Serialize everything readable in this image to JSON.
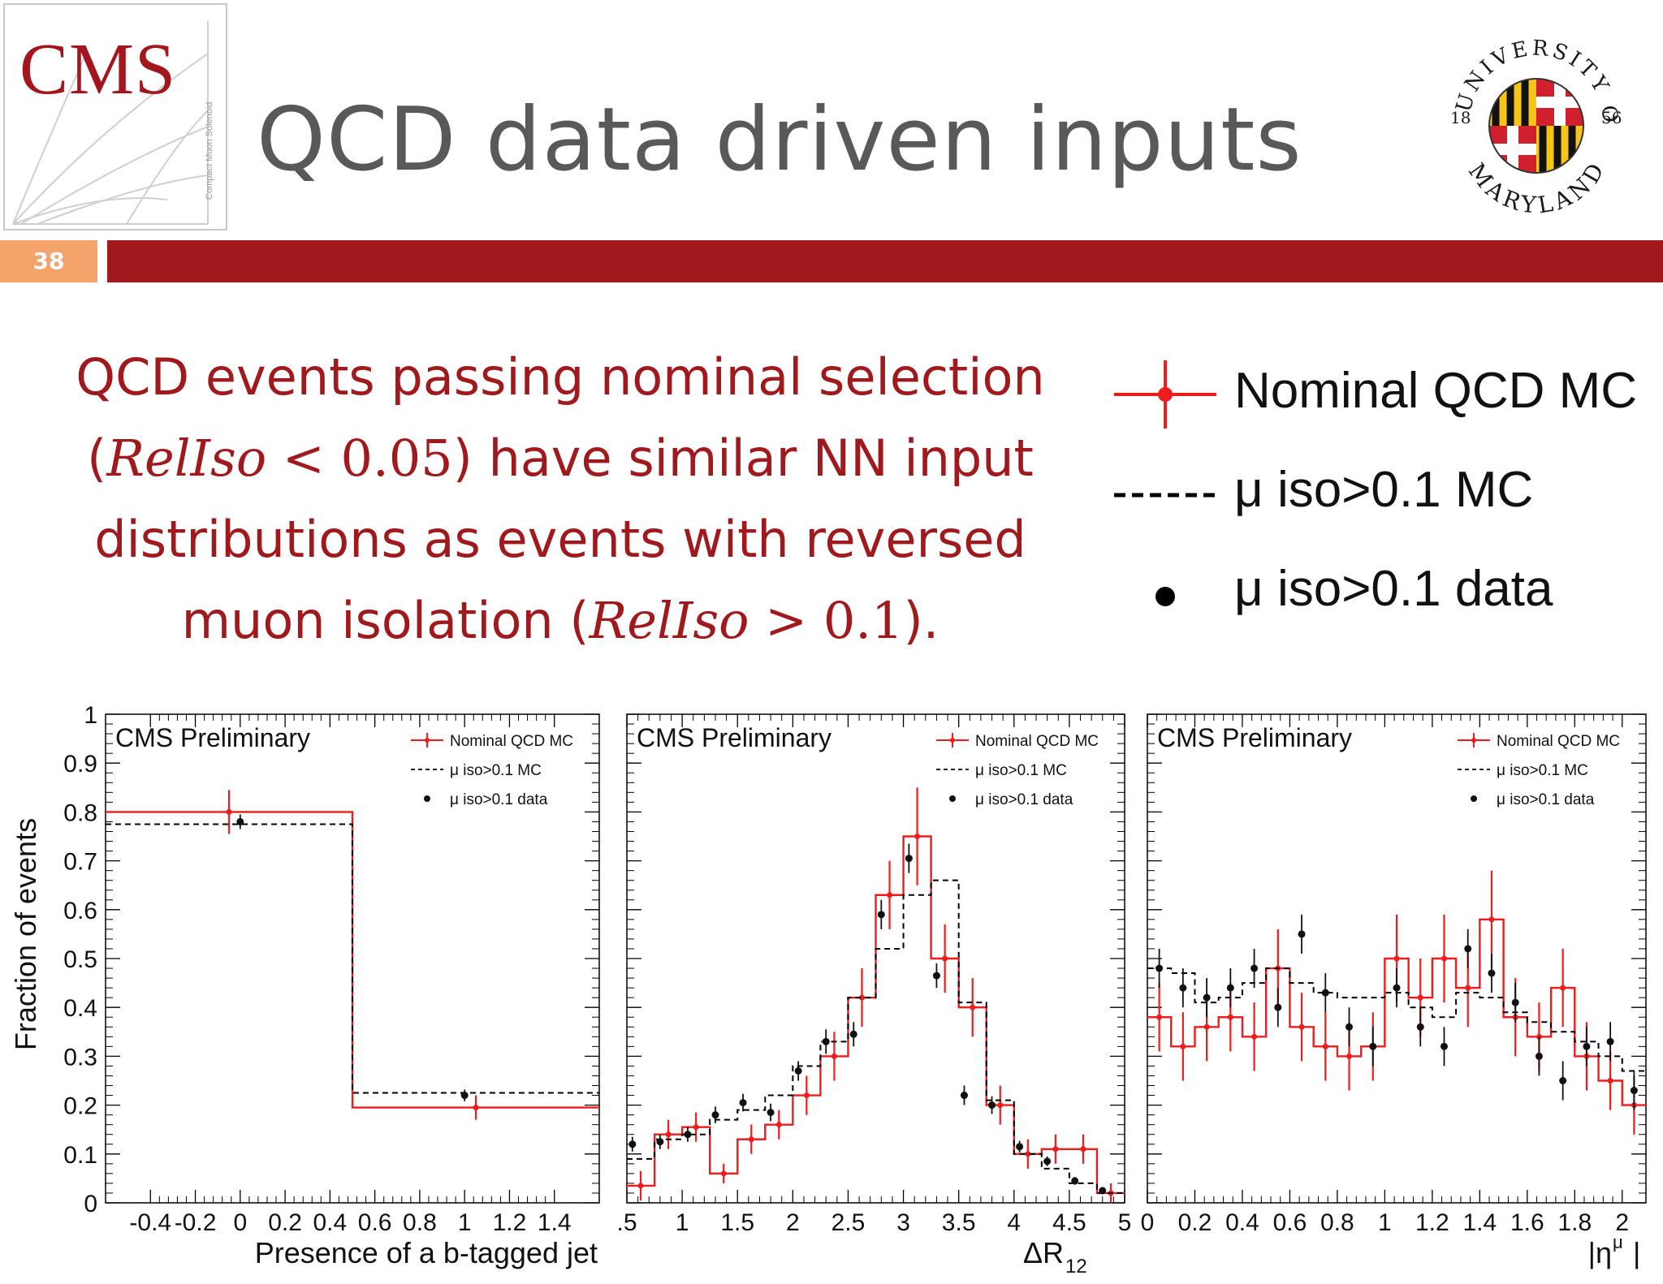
{
  "header": {
    "logo_text": "CMS",
    "logo_subtext": "Compact Muon Solenoid",
    "title": "QCD data driven inputs",
    "slide_number": "38",
    "university_seal": {
      "top_text": "UNIVERSITY OF",
      "bottom_text": "MARYLAND",
      "year_left": "18",
      "year_right": "56"
    }
  },
  "colors": {
    "accent": "#a0191d",
    "slide_number_bg": "#f4a36b",
    "title": "#595959",
    "mc_red": "#ee1c1c",
    "dashed": "#000000"
  },
  "statement": {
    "line1": "QCD events passing nominal selection",
    "line2_open": "(",
    "line2_math": "RelIso",
    "line2_rel": " < 0.05",
    "line2_close": ") have similar NN input",
    "line3": "distributions as events with reversed",
    "line4_pre": "muon isolation (",
    "line4_math": "RelIso",
    "line4_rel": " > 0.1",
    "line4_close": ")."
  },
  "legend": {
    "entries": [
      "Nominal QCD MC",
      "μ iso>0.1 MC",
      "μ iso>0.1 data"
    ]
  },
  "chart_data": [
    {
      "type": "step",
      "title": "CMS Preliminary",
      "xlabel": "Presence of a b-tagged jet",
      "ylabel": "Fraction of events",
      "xlim": [
        -0.6,
        1.6
      ],
      "ylim": [
        0,
        1
      ],
      "xticks": [
        "-0.4",
        "-0.2",
        "0",
        "0.2",
        "0.4",
        "0.6",
        "0.8",
        "1",
        "1.2",
        "1.4"
      ],
      "yticks": [
        "0",
        "0.1",
        "0.2",
        "0.3",
        "0.4",
        "0.5",
        "0.6",
        "0.7",
        "0.8",
        "0.9",
        "1"
      ],
      "bin_edges": [
        -0.6,
        0.5,
        1.6
      ],
      "series": [
        {
          "name": "Nominal QCD MC",
          "values": [
            0.8,
            0.195
          ],
          "errors": [
            0.045,
            0.025
          ]
        },
        {
          "name": "μ iso>0.1 MC",
          "values": [
            0.775,
            0.225
          ]
        },
        {
          "name": "μ iso>0.1 data",
          "x": [
            0,
            1
          ],
          "values": [
            0.78,
            0.22
          ],
          "errors": [
            0.015,
            0.012
          ]
        }
      ]
    },
    {
      "type": "step",
      "title": "CMS Preliminary",
      "xlabel": "ΔR",
      "xlabel_sub": "12",
      "xlim": [
        0.5,
        5.0
      ],
      "ylim": [
        0,
        1
      ],
      "xticks": [
        ".5",
        "1",
        "1.5",
        "2",
        "2.5",
        "3",
        "3.5",
        "4",
        "4.5",
        "5"
      ],
      "bin_edges": [
        0.5,
        0.75,
        1.0,
        1.25,
        1.5,
        1.75,
        2.0,
        2.25,
        2.5,
        2.75,
        3.0,
        3.25,
        3.5,
        3.75,
        4.0,
        4.25,
        4.5,
        4.75,
        5.0
      ],
      "series": [
        {
          "name": "Nominal QCD MC",
          "values": [
            0.035,
            0.14,
            0.155,
            0.06,
            0.13,
            0.16,
            0.22,
            0.3,
            0.42,
            0.63,
            0.75,
            0.5,
            0.4,
            0.2,
            0.1,
            0.11,
            0.11,
            0.02
          ],
          "errors": [
            0.03,
            0.03,
            0.03,
            0.02,
            0.03,
            0.03,
            0.04,
            0.05,
            0.06,
            0.07,
            0.1,
            0.07,
            0.06,
            0.04,
            0.03,
            0.03,
            0.03,
            0.02
          ]
        },
        {
          "name": "μ iso>0.1 MC",
          "values": [
            0.09,
            0.13,
            0.14,
            0.17,
            0.19,
            0.22,
            0.28,
            0.33,
            0.42,
            0.52,
            0.63,
            0.66,
            0.41,
            0.21,
            0.1,
            0.07,
            0.04,
            0.02
          ]
        },
        {
          "name": "μ iso>0.1 data",
          "x": [
            0.55,
            0.8,
            1.05,
            1.3,
            1.55,
            1.8,
            2.05,
            2.3,
            2.55,
            2.8,
            3.05,
            3.3,
            3.55,
            3.8,
            4.05,
            4.3,
            4.55,
            4.8
          ],
          "values": [
            0.12,
            0.125,
            0.14,
            0.18,
            0.205,
            0.185,
            0.27,
            0.33,
            0.345,
            0.59,
            0.705,
            0.465,
            0.22,
            0.2,
            0.115,
            0.085,
            0.045,
            0.025
          ],
          "errors": [
            0.015,
            0.015,
            0.015,
            0.017,
            0.018,
            0.018,
            0.02,
            0.025,
            0.025,
            0.03,
            0.03,
            0.025,
            0.02,
            0.018,
            0.012,
            0.01,
            0.008,
            0.006
          ]
        }
      ]
    },
    {
      "type": "step",
      "title": "CMS Preliminary",
      "xlabel": "|η",
      "xlabel_sup": "μ",
      "xlabel_end": "|",
      "xlim": [
        0,
        2.1
      ],
      "ylim": [
        0,
        1
      ],
      "xticks": [
        "0",
        "0.2",
        "0.4",
        "0.6",
        "0.8",
        "1",
        "1.2",
        "1.4",
        "1.6",
        "1.8",
        "2"
      ],
      "bin_edges": [
        0,
        0.1,
        0.2,
        0.3,
        0.4,
        0.5,
        0.6,
        0.7,
        0.8,
        0.9,
        1.0,
        1.1,
        1.2,
        1.3,
        1.4,
        1.5,
        1.6,
        1.7,
        1.8,
        1.9,
        2.0,
        2.1
      ],
      "series": [
        {
          "name": "Nominal QCD MC",
          "values": [
            0.38,
            0.32,
            0.36,
            0.38,
            0.34,
            0.48,
            0.36,
            0.32,
            0.3,
            0.32,
            0.5,
            0.42,
            0.5,
            0.44,
            0.58,
            0.38,
            0.34,
            0.44,
            0.3,
            0.25,
            0.2
          ],
          "errors": [
            0.07,
            0.07,
            0.07,
            0.07,
            0.07,
            0.08,
            0.07,
            0.07,
            0.07,
            0.07,
            0.09,
            0.08,
            0.09,
            0.08,
            0.1,
            0.08,
            0.07,
            0.08,
            0.07,
            0.06,
            0.06
          ]
        },
        {
          "name": "μ iso>0.1 MC",
          "values": [
            0.48,
            0.47,
            0.41,
            0.42,
            0.45,
            0.48,
            0.45,
            0.43,
            0.42,
            0.42,
            0.43,
            0.4,
            0.38,
            0.43,
            0.42,
            0.39,
            0.37,
            0.35,
            0.33,
            0.3,
            0.27
          ]
        },
        {
          "name": "μ iso>0.1 data",
          "x": [
            0.05,
            0.15,
            0.25,
            0.35,
            0.45,
            0.55,
            0.65,
            0.75,
            0.85,
            0.95,
            1.05,
            1.15,
            1.25,
            1.35,
            1.45,
            1.55,
            1.65,
            1.75,
            1.85,
            1.95,
            2.05
          ],
          "values": [
            0.48,
            0.44,
            0.42,
            0.44,
            0.48,
            0.4,
            0.55,
            0.43,
            0.36,
            0.32,
            0.44,
            0.36,
            0.32,
            0.52,
            0.47,
            0.41,
            0.3,
            0.25,
            0.32,
            0.33,
            0.23
          ],
          "errors": [
            0.04,
            0.04,
            0.04,
            0.04,
            0.04,
            0.04,
            0.04,
            0.04,
            0.04,
            0.04,
            0.04,
            0.04,
            0.04,
            0.04,
            0.04,
            0.04,
            0.04,
            0.04,
            0.04,
            0.04,
            0.04
          ]
        }
      ]
    }
  ]
}
